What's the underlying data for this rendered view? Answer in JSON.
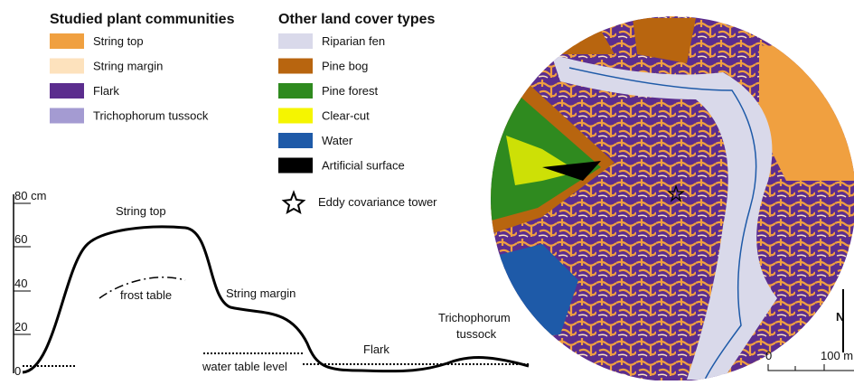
{
  "legend": {
    "studied": {
      "title": "Studied plant communities",
      "items": [
        {
          "label": "String top",
          "color": "#f0a040"
        },
        {
          "label": "String margin",
          "color": "#fde2bd"
        },
        {
          "label": "Flark",
          "color": "#5b2d8e"
        },
        {
          "label": "Trichophorum tussock",
          "color": "#a49bd2"
        }
      ]
    },
    "other": {
      "title": "Other land cover types",
      "items": [
        {
          "label": "Riparian fen",
          "color": "#d9d9ea"
        },
        {
          "label": "Pine bog",
          "color": "#b8650f"
        },
        {
          "label": "Pine forest",
          "color": "#2f8a1f"
        },
        {
          "label": "Clear-cut",
          "color": "#f5f500"
        },
        {
          "label": "Water",
          "color": "#1e5aa8"
        },
        {
          "label": "Artificial surface",
          "color": "#000000"
        }
      ]
    },
    "tower": "Eddy covariance tower"
  },
  "profile": {
    "axis_labels": [
      "80 cm",
      "60",
      "40",
      "20",
      "0"
    ],
    "annotations": {
      "string_top": "String top",
      "frost_table": "frost table",
      "string_margin": "String margin",
      "water_table": "water table level",
      "flark": "Flark",
      "tussock": [
        "Trichophorum",
        "tussock"
      ]
    }
  },
  "map": {
    "north": "N",
    "scale": [
      "0",
      "100 m"
    ]
  }
}
